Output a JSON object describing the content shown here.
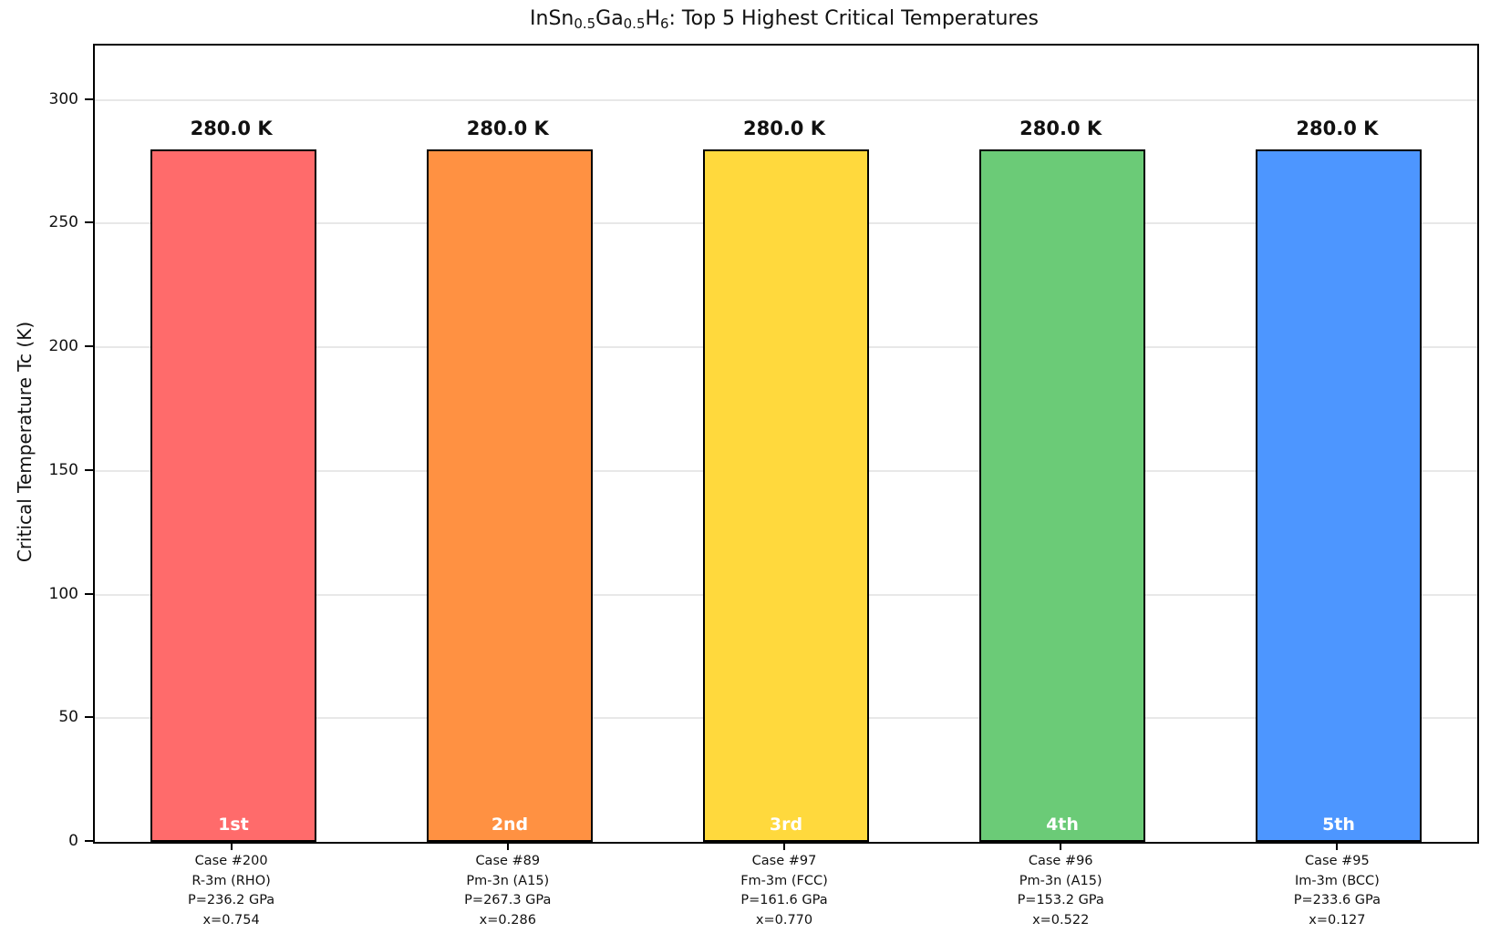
{
  "title": {
    "plain": "InSn0.5Ga0.5H6: Top 5 Highest Critical Temperatures",
    "segments": [
      {
        "text": "InSn",
        "sub": false
      },
      {
        "text": "0.5",
        "sub": true
      },
      {
        "text": "Ga",
        "sub": false
      },
      {
        "text": "0.5",
        "sub": true
      },
      {
        "text": "H",
        "sub": false
      },
      {
        "text": "6",
        "sub": true
      },
      {
        "text": ": Top 5 Highest Critical Temperatures",
        "sub": false
      }
    ]
  },
  "chart_data": {
    "type": "bar",
    "title": "InSn0.5Ga0.5H6: Top 5 Highest Critical Temperatures",
    "xlabel": "",
    "ylabel": "Critical Temperature Tc (K)",
    "ylim": [
      0,
      322
    ],
    "yticks": [
      0,
      50,
      100,
      150,
      200,
      250,
      300
    ],
    "grid": "horizontal",
    "grid_color": "#e8e8e8",
    "bar_edge_color": "#000000",
    "rank_label_color": "#ffffff",
    "categories": [
      "Case #200",
      "Case #89",
      "Case #97",
      "Case #96",
      "Case #95"
    ],
    "values": [
      280.0,
      280.0,
      280.0,
      280.0,
      280.0
    ],
    "bars": [
      {
        "rank": "1st",
        "value": 280.0,
        "value_label": "280.0 K",
        "color": "#FF6B6B",
        "tick_lines": [
          "Case #200",
          "R-3m (RHO)",
          "P=236.2 GPa",
          "x=0.754"
        ]
      },
      {
        "rank": "2nd",
        "value": 280.0,
        "value_label": "280.0 K",
        "color": "#FF9142",
        "tick_lines": [
          "Case #89",
          "Pm-3n (A15)",
          "P=267.3 GPa",
          "x=0.286"
        ]
      },
      {
        "rank": "3rd",
        "value": 280.0,
        "value_label": "280.0 K",
        "color": "#FFD93D",
        "tick_lines": [
          "Case #97",
          "Fm-3m (FCC)",
          "P=161.6 GPa",
          "x=0.770"
        ]
      },
      {
        "rank": "4th",
        "value": 280.0,
        "value_label": "280.0 K",
        "color": "#6BCB77",
        "tick_lines": [
          "Case #96",
          "Pm-3n (A15)",
          "P=153.2 GPa",
          "x=0.522"
        ]
      },
      {
        "rank": "5th",
        "value": 280.0,
        "value_label": "280.0 K",
        "color": "#4D96FF",
        "tick_lines": [
          "Case #95",
          "Im-3m (BCC)",
          "P=233.6 GPa",
          "x=0.127"
        ]
      }
    ]
  }
}
